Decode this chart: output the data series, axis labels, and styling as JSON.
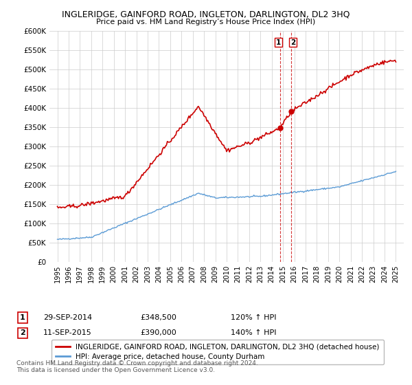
{
  "title": "INGLERIDGE, GAINFORD ROAD, INGLETON, DARLINGTON, DL2 3HQ",
  "subtitle": "Price paid vs. HM Land Registry’s House Price Index (HPI)",
  "ylabel_ticks": [
    "£0",
    "£50K",
    "£100K",
    "£150K",
    "£200K",
    "£250K",
    "£300K",
    "£350K",
    "£400K",
    "£450K",
    "£500K",
    "£550K",
    "£600K"
  ],
  "ylim": [
    0,
    600000
  ],
  "yticks": [
    0,
    50000,
    100000,
    150000,
    200000,
    250000,
    300000,
    350000,
    400000,
    450000,
    500000,
    550000,
    600000
  ],
  "sale1_date": "29-SEP-2014",
  "sale1_price": 348500,
  "sale1_label": "£348,500",
  "sale1_hpi": "120% ↑ HPI",
  "sale1_x": 2014.75,
  "sale2_date": "11-SEP-2015",
  "sale2_price": 390000,
  "sale2_label": "£390,000",
  "sale2_hpi": "140% ↑ HPI",
  "sale2_x": 2015.71,
  "property_color": "#cc0000",
  "hpi_color": "#5b9bd5",
  "legend_property": "INGLERIDGE, GAINFORD ROAD, INGLETON, DARLINGTON, DL2 3HQ (detached house)",
  "legend_hpi": "HPI: Average price, detached house, County Durham",
  "footnote": "Contains HM Land Registry data © Crown copyright and database right 2024.\nThis data is licensed under the Open Government Licence v3.0.",
  "background_color": "#ffffff",
  "grid_color": "#cccccc"
}
